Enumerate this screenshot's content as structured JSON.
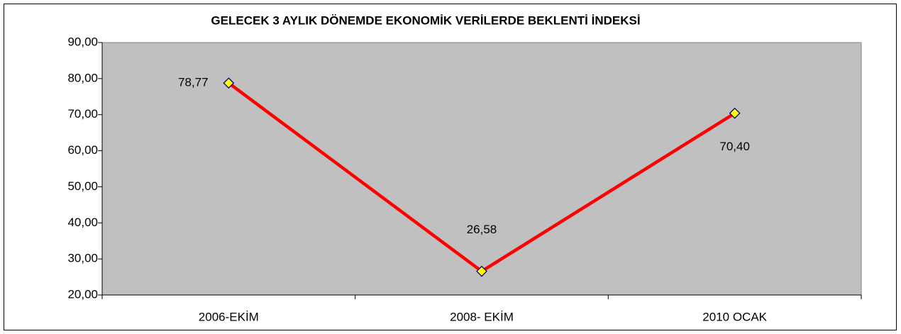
{
  "chart_data": {
    "type": "line",
    "title": "GELECEK 3 AYLIK DÖNEMDE EKONOMİK VERİLERDE BEKLENTİ İNDEKSİ",
    "categories": [
      "2006-EKİM",
      "2008- EKİM",
      "2010 OCAK"
    ],
    "values": [
      78.77,
      26.58,
      70.4
    ],
    "value_labels": [
      "78,77",
      "26,58",
      "70,40"
    ],
    "color": "#ff0000",
    "marker_color": "#ffff00",
    "ylim": [
      20,
      90
    ],
    "yticks": [
      {
        "value": 20,
        "label": "20,00"
      },
      {
        "value": 30,
        "label": "30,00"
      },
      {
        "value": 40,
        "label": "40,00"
      },
      {
        "value": 50,
        "label": "50,00"
      },
      {
        "value": 60,
        "label": "60,00"
      },
      {
        "value": 70,
        "label": "70,00"
      },
      {
        "value": 80,
        "label": "80,00"
      },
      {
        "value": 90,
        "label": "90,00"
      }
    ],
    "grid": false
  }
}
